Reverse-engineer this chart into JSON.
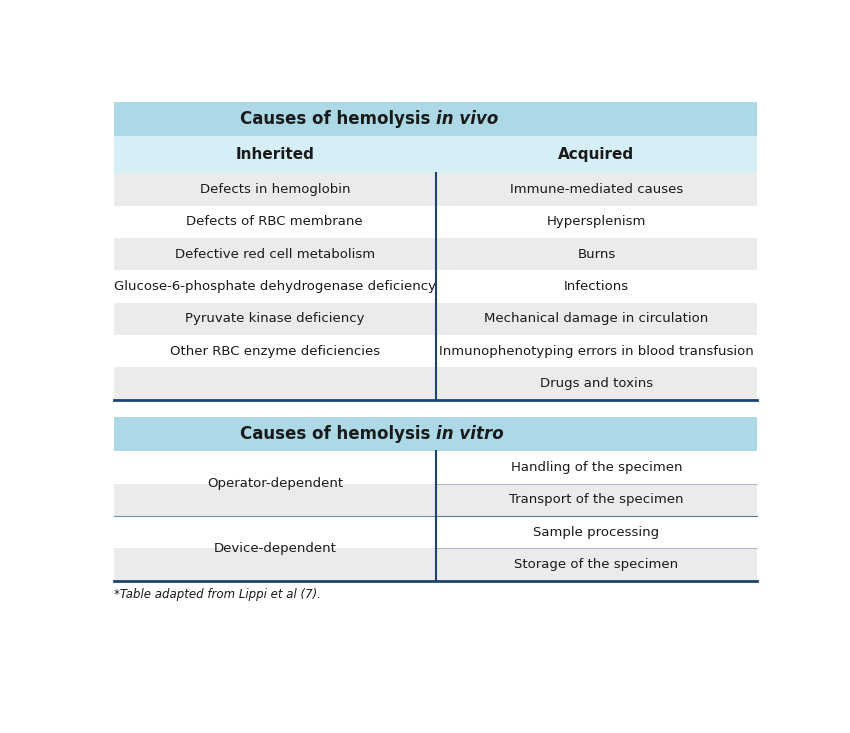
{
  "title_vivo_normal": "Causes of hemolysis ",
  "title_vivo_italic": "in vivo",
  "title_vitro_normal": "Causes of hemolysis ",
  "title_vitro_italic": "in vitro",
  "header_inherited": "Inherited",
  "header_acquired": "Acquired",
  "inherited_rows": [
    "Defects in hemoglobin",
    "Defects of RBC membrane",
    "Defective red cell metabolism",
    "Glucose-6-phosphate dehydrogenase deficiency",
    "Pyruvate kinase deficiency",
    "Other RBC enzyme deficiencies"
  ],
  "acquired_rows": [
    "Immune-mediated causes",
    "Hypersplenism",
    "Burns",
    "Infections",
    "Mechanical damage in circulation",
    "Inmunophenotyping errors in blood transfusion",
    "Drugs and toxins"
  ],
  "operator_dependent": "Operator-dependent",
  "device_dependent": "Device-dependent",
  "vitro_right_rows": [
    "Handling of the specimen",
    "Transport of the specimen",
    "Sample processing",
    "Storage of the specimen"
  ],
  "footnote": "*Table adapted from Lippi et al (7).",
  "color_header_bg": "#add8e6",
  "color_subheader_bg": "#d6eef5",
  "color_row_odd": "#ebebeb",
  "color_row_even": "#ffffff",
  "color_divider": "#1c4472",
  "color_border_bottom": "#1c4472",
  "color_text": "#1a1a1a",
  "fig_width": 8.5,
  "fig_height": 7.33
}
